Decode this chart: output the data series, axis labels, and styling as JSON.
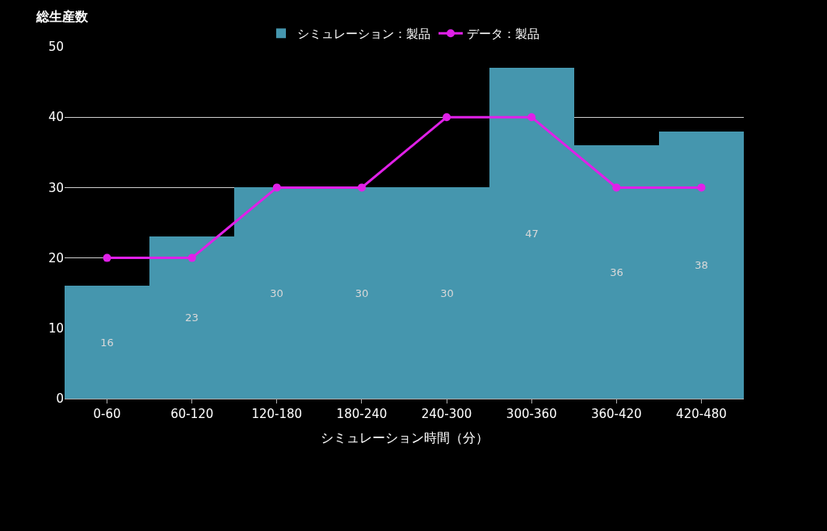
{
  "chart_data": {
    "type": "bar",
    "ylabel": "総生産数",
    "xlabel": "シミュレーション時間（分）",
    "categories": [
      "0-60",
      "60-120",
      "120-180",
      "180-240",
      "240-300",
      "300-360",
      "360-420",
      "420-480"
    ],
    "series": [
      {
        "name": "シミュレーション：製品",
        "color": "#4596ae",
        "values": [
          16,
          23,
          30,
          30,
          30,
          47,
          36,
          38
        ],
        "data_labels": true
      },
      {
        "name": "データ：製品",
        "type": "line",
        "color": "#e020e8",
        "values": [
          20,
          20,
          30,
          30,
          40,
          40,
          30,
          30
        ],
        "marker": "circle"
      }
    ],
    "ylim": [
      0,
      50
    ],
    "yticks": [
      0,
      10,
      20,
      30,
      40,
      50
    ],
    "grid": "y",
    "legend": "top"
  }
}
